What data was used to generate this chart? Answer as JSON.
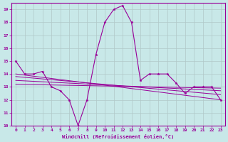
{
  "xlabel": "Windchill (Refroidissement éolien,°C)",
  "bg_color": "#c8e8e8",
  "line_color": "#990099",
  "grid_color": "#b0c8c8",
  "xlim": [
    -0.5,
    23.5
  ],
  "ylim": [
    10,
    19.5
  ],
  "xticks": [
    0,
    1,
    2,
    3,
    4,
    5,
    6,
    7,
    8,
    9,
    10,
    11,
    12,
    13,
    14,
    15,
    16,
    17,
    18,
    19,
    20,
    21,
    22,
    23
  ],
  "yticks": [
    10,
    11,
    12,
    13,
    14,
    15,
    16,
    17,
    18,
    19
  ],
  "series_main": {
    "x": [
      0,
      1,
      2,
      3,
      4,
      5,
      6,
      7,
      8,
      9,
      10,
      11,
      12,
      13,
      14,
      15,
      16,
      17,
      18,
      19,
      20,
      21,
      22,
      23
    ],
    "y": [
      15,
      14,
      14,
      14.2,
      13,
      12.7,
      12,
      10,
      12,
      15.5,
      18,
      19,
      19.3,
      18,
      13.5,
      14,
      14,
      14,
      13.3,
      12.5,
      13,
      13,
      13,
      12
    ]
  },
  "series_flat": [
    {
      "x": [
        0,
        23
      ],
      "y": [
        14.0,
        12.0
      ]
    },
    {
      "x": [
        0,
        23
      ],
      "y": [
        13.8,
        12.4
      ]
    },
    {
      "x": [
        0,
        23
      ],
      "y": [
        13.5,
        12.7
      ]
    },
    {
      "x": [
        0,
        23
      ],
      "y": [
        13.2,
        12.9
      ]
    }
  ]
}
